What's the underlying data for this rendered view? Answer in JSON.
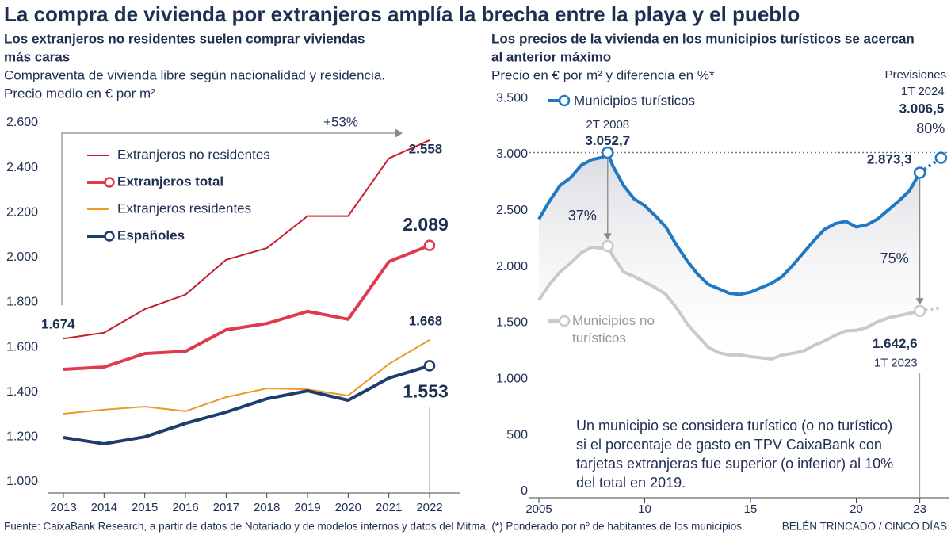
{
  "title": "La compra de vivienda por extranjeros amplía la brecha entre la playa y el pueblo",
  "source": "Fuente: CaixaBank Research, a partir de datos de Notariado y de modelos internos y datos del Mitma. (*) Ponderado por nº de habitantes de los municipios.",
  "credit": "BELÉN TRINCADO / CINCO DÍAS",
  "chart_data": [
    {
      "type": "line",
      "title": [
        "Los extranjeros no residentes suelen comprar viviendas",
        "más caras"
      ],
      "subtitle": [
        "Compraventa de vivienda libre según nacionalidad y residencia.",
        "Precio medio en € por m²"
      ],
      "categories": [
        "2013",
        "2014",
        "2015",
        "2016",
        "2017",
        "2018",
        "2019",
        "2020",
        "2021",
        "2022"
      ],
      "ylim": [
        1000,
        2600
      ],
      "yticks": [
        {
          "value": 1000,
          "label": "1.000"
        },
        {
          "value": 1200,
          "label": "1.200"
        },
        {
          "value": 1400,
          "label": "1.400"
        },
        {
          "value": 1600,
          "label": "1.600"
        },
        {
          "value": 1800,
          "label": "1.800"
        },
        {
          "value": 2000,
          "label": "2.000"
        },
        {
          "value": 2200,
          "label": "2.200"
        },
        {
          "value": 2400,
          "label": "2.400"
        },
        {
          "value": 2600,
          "label": "2.600"
        }
      ],
      "annotation": "+53%",
      "series": [
        {
          "name": "Extranjeros no residentes",
          "color": "#c41e2e",
          "width": 2,
          "marker": false,
          "values": [
            1674,
            1700,
            1805,
            1870,
            2025,
            2077,
            2220,
            2220,
            2477,
            2558
          ],
          "value_labels": [
            "1.674",
            null,
            null,
            null,
            null,
            null,
            null,
            null,
            null,
            "2.558"
          ]
        },
        {
          "name": "Extranjeros total",
          "color": "#e03a4e",
          "width": 4,
          "marker": true,
          "values": [
            1537,
            1547,
            1607,
            1617,
            1713,
            1741,
            1795,
            1760,
            2017,
            2089
          ],
          "value_labels": [
            null,
            null,
            null,
            null,
            null,
            null,
            null,
            null,
            null,
            "2.089"
          ]
        },
        {
          "name": "Extranjeros residentes",
          "color": "#eb9a23",
          "width": 2,
          "marker": false,
          "values": [
            1339,
            1357,
            1371,
            1350,
            1413,
            1452,
            1448,
            1420,
            1561,
            1668
          ],
          "value_labels": [
            null,
            null,
            null,
            null,
            null,
            null,
            null,
            null,
            null,
            "1.668"
          ]
        },
        {
          "name": "Españoles",
          "color": "#1e3c6e",
          "width": 4,
          "marker": true,
          "values": [
            1233,
            1205,
            1236,
            1296,
            1346,
            1406,
            1441,
            1399,
            1498,
            1553
          ],
          "value_labels": [
            null,
            null,
            null,
            null,
            null,
            null,
            null,
            null,
            null,
            "1.553"
          ]
        }
      ]
    },
    {
      "type": "line",
      "title": [
        "Los precios de la vivienda en los municipios turísticos se acercan",
        "al anterior máximo"
      ],
      "subtitle": [
        "Precio en € por m² y diferencia en %*"
      ],
      "x": [
        2005,
        2005.5,
        2006,
        2006.5,
        2007,
        2007.5,
        2008,
        2008.25,
        2008.5,
        2009,
        2009.5,
        2010,
        2010.5,
        2011,
        2011.5,
        2012,
        2012.5,
        2013,
        2013.5,
        2014,
        2014.5,
        2015,
        2015.5,
        2016,
        2016.5,
        2017,
        2017.5,
        2018,
        2018.5,
        2019,
        2019.5,
        2020,
        2020.5,
        2021,
        2021.5,
        2022,
        2022.5,
        2023,
        2024
      ],
      "xlim": [
        2004.7,
        2024.4
      ],
      "xticks": [
        {
          "value": 2005,
          "label": "2005"
        },
        {
          "value": 2010,
          "label": "10"
        },
        {
          "value": 2015,
          "label": "15"
        },
        {
          "value": 2020,
          "label": "20"
        },
        {
          "value": 2023,
          "label": "23"
        }
      ],
      "ylim": [
        0,
        3600
      ],
      "yticks": [
        0,
        {
          "value": 500,
          "label": "500"
        },
        {
          "value": 1000,
          "label": "1.000"
        },
        {
          "value": 1500,
          "label": "1.500"
        },
        {
          "value": 2000,
          "label": "2.000"
        },
        {
          "value": 2500,
          "label": "2.500"
        },
        {
          "value": 3000,
          "label": "3.000"
        },
        {
          "value": 3500,
          "label": "3.500"
        }
      ],
      "forecast_from": 2023,
      "series": [
        {
          "name": "Municipios turísticos",
          "color": "#1f78c1",
          "width": 4,
          "values": [
            2460,
            2620,
            2760,
            2830,
            2940,
            2990,
            3010,
            3052.7,
            2930,
            2760,
            2640,
            2580,
            2490,
            2390,
            2230,
            2090,
            1970,
            1880,
            1840,
            1800,
            1790,
            1810,
            1850,
            1890,
            1950,
            2050,
            2160,
            2270,
            2370,
            2420,
            2440,
            2390,
            2410,
            2460,
            2540,
            2620,
            2710,
            2873.3,
            3006.5
          ],
          "value_labels": [
            null,
            null,
            null,
            null,
            null,
            null,
            null,
            "3.052,7",
            null,
            null,
            null,
            null,
            null,
            null,
            null,
            null,
            null,
            null,
            null,
            null,
            null,
            null,
            null,
            null,
            null,
            null,
            null,
            null,
            null,
            null,
            null,
            null,
            null,
            null,
            null,
            null,
            null,
            "2.873,3",
            "3.006,5"
          ]
        },
        {
          "name": "Municipios no turísticos",
          "color": "#c9c9c9",
          "width": 4,
          "values": [
            1740,
            1880,
            1990,
            2070,
            2160,
            2210,
            2200,
            2221,
            2130,
            1990,
            1950,
            1900,
            1850,
            1790,
            1670,
            1530,
            1420,
            1320,
            1270,
            1250,
            1250,
            1235,
            1225,
            1215,
            1250,
            1265,
            1285,
            1335,
            1375,
            1425,
            1465,
            1470,
            1495,
            1545,
            1580,
            1600,
            1620,
            1642.6,
            1670
          ],
          "value_labels": [
            null,
            null,
            null,
            null,
            null,
            null,
            null,
            null,
            null,
            null,
            null,
            null,
            null,
            null,
            null,
            null,
            null,
            null,
            null,
            null,
            null,
            null,
            null,
            null,
            null,
            null,
            null,
            null,
            null,
            null,
            null,
            null,
            null,
            null,
            null,
            null,
            null,
            "1.642,6",
            null
          ]
        }
      ],
      "differences": [
        {
          "x": 2008.25,
          "value": 37,
          "label": "37%"
        },
        {
          "x": 2023,
          "value": 75,
          "label": "75%"
        },
        {
          "x": 2024,
          "value": 80,
          "label": "80%"
        }
      ],
      "annotations": [
        {
          "x": 2008.25,
          "text": "2T 2008"
        },
        {
          "x": 2023,
          "text": "1T 2023"
        },
        {
          "x": 2024,
          "text": "Previsiones"
        },
        {
          "x": 2024,
          "text": "1T 2024"
        }
      ],
      "note": [
        "Un municipio se considera turístico (o no turístico)",
        "si el porcentaje de gasto en TPV CaixaBank con",
        "tarjetas extranjeras fue superior (o inferior) al 10%",
        "del total en 2019."
      ]
    }
  ]
}
